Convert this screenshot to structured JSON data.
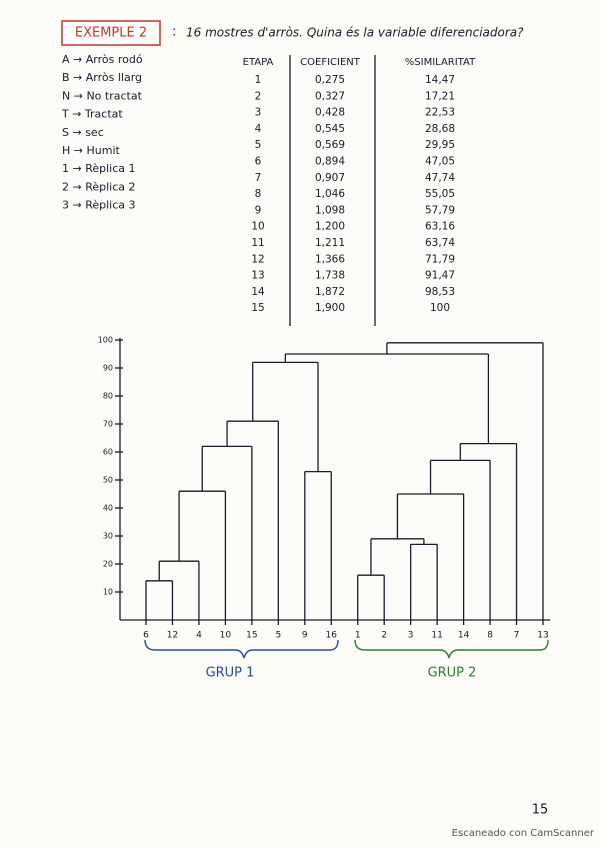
{
  "header": {
    "badge": "EXEMPLE 2",
    "colon": ":",
    "question": "16 mostres d'arròs. Quina és la variable diferenciadora?"
  },
  "legend": [
    "A → Arròs rodó",
    "B → Arròs llarg",
    "N → No tractat",
    "T → Tractat",
    "S → sec",
    "H → Humit",
    "1 → Rèplica 1",
    "2 → Rèplica 2",
    "3 → Rèplica 3"
  ],
  "table": {
    "headers": [
      "ETAPA",
      "COEFICIENT",
      "%SIMILARITAT"
    ],
    "rows": [
      [
        "1",
        "0,275",
        "14,47"
      ],
      [
        "2",
        "0,327",
        "17,21"
      ],
      [
        "3",
        "0,428",
        "22,53"
      ],
      [
        "4",
        "0,545",
        "28,68"
      ],
      [
        "5",
        "0,569",
        "29,95"
      ],
      [
        "6",
        "0,894",
        "47,05"
      ],
      [
        "7",
        "0,907",
        "47,74"
      ],
      [
        "8",
        "1,046",
        "55,05"
      ],
      [
        "9",
        "1,098",
        "57,79"
      ],
      [
        "10",
        "1,200",
        "63,16"
      ],
      [
        "11",
        "1,211",
        "63,74"
      ],
      [
        "12",
        "1,366",
        "71,79"
      ],
      [
        "13",
        "1,738",
        "91,47"
      ],
      [
        "14",
        "1,872",
        "98,53"
      ],
      [
        "15",
        "1,900",
        "100"
      ]
    ]
  },
  "dendrogram": {
    "ylim": [
      0,
      100
    ],
    "yticks": [
      10,
      20,
      30,
      40,
      50,
      60,
      70,
      80,
      90,
      100
    ],
    "leaves": [
      "6",
      "12",
      "4",
      "10",
      "15",
      "5",
      "9",
      "16",
      "1",
      "2",
      "3",
      "11",
      "14",
      "8",
      "7",
      "13"
    ],
    "merges": [
      [
        0,
        1,
        14
      ],
      [
        16,
        2,
        21
      ],
      [
        17,
        3,
        46
      ],
      [
        18,
        4,
        62
      ],
      [
        19,
        5,
        71
      ],
      [
        6,
        7,
        53
      ],
      [
        20,
        21,
        92
      ],
      [
        8,
        9,
        16
      ],
      [
        10,
        11,
        27
      ],
      [
        23,
        24,
        29
      ],
      [
        25,
        12,
        45
      ],
      [
        26,
        13,
        57
      ],
      [
        27,
        14,
        63
      ],
      [
        22,
        28,
        95
      ],
      [
        29,
        15,
        99
      ]
    ]
  },
  "groups": [
    "GRUP 1",
    "GRUP 2"
  ],
  "page_number": "15",
  "footer": "Escaneado con CamScanner"
}
